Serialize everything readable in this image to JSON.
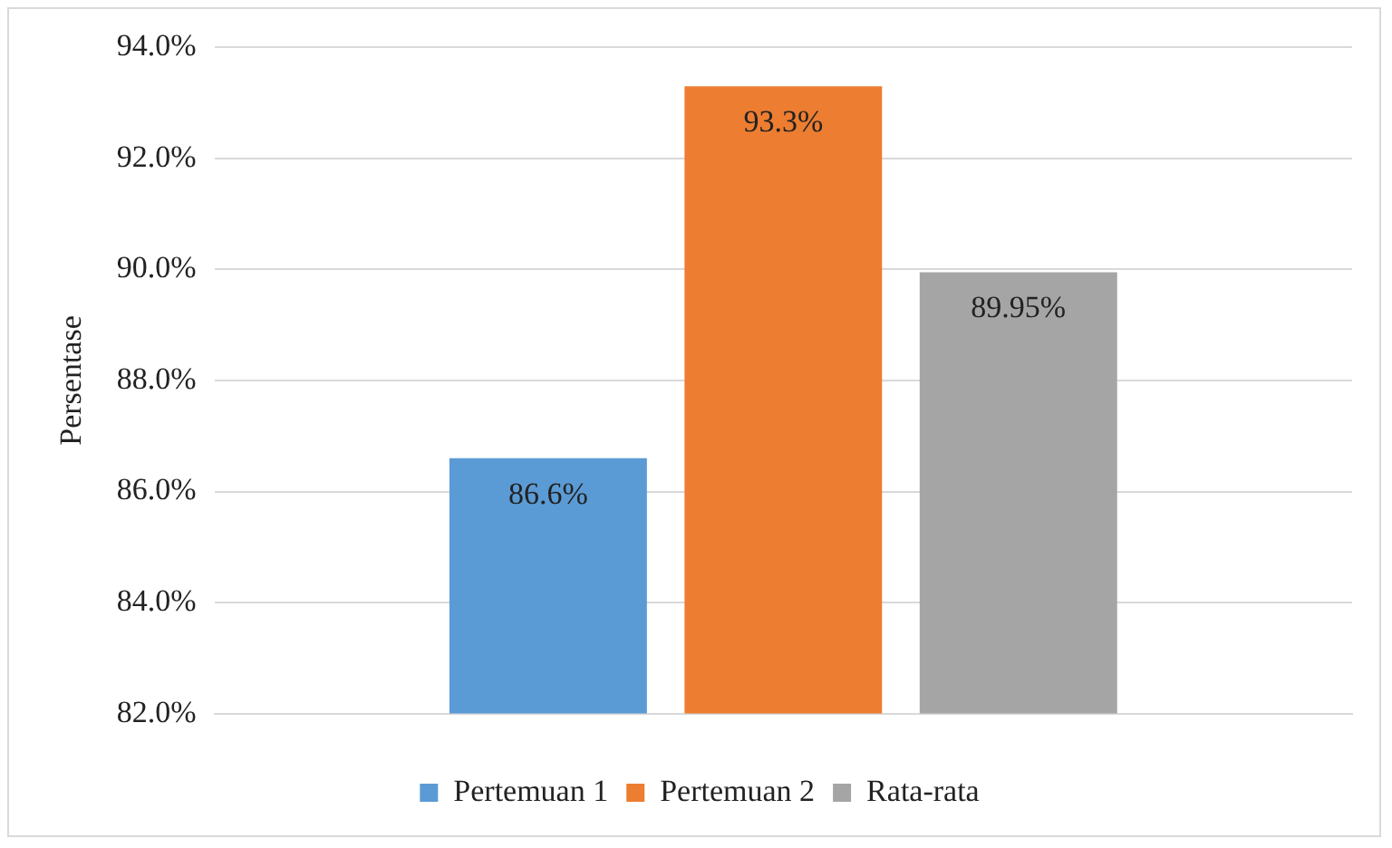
{
  "chart_data": {
    "type": "bar",
    "ylabel": "Persentase",
    "categories": [
      null
    ],
    "series": [
      {
        "name": "Pertemuan 1",
        "color": "#5b9bd5",
        "values": [
          86.6
        ],
        "value_labels": [
          "86.6%"
        ]
      },
      {
        "name": "Pertemuan 2",
        "color": "#ed7d31",
        "values": [
          93.3
        ],
        "value_labels": [
          "93.3%"
        ]
      },
      {
        "name": "Rata-rata",
        "color": "#a5a5a5",
        "values": [
          89.95
        ],
        "value_labels": [
          "89.95%"
        ]
      }
    ],
    "ylim": [
      82,
      94
    ],
    "yticks": [
      {
        "value": 82,
        "label": "82.0%"
      },
      {
        "value": 84,
        "label": "84.0%"
      },
      {
        "value": 86,
        "label": "86.0%"
      },
      {
        "value": 88,
        "label": "88.0%"
      },
      {
        "value": 90,
        "label": "90.0%"
      },
      {
        "value": 92,
        "label": "92.0%"
      },
      {
        "value": 94,
        "label": "94.0%"
      }
    ],
    "grid": "y",
    "legend": "bottom"
  }
}
